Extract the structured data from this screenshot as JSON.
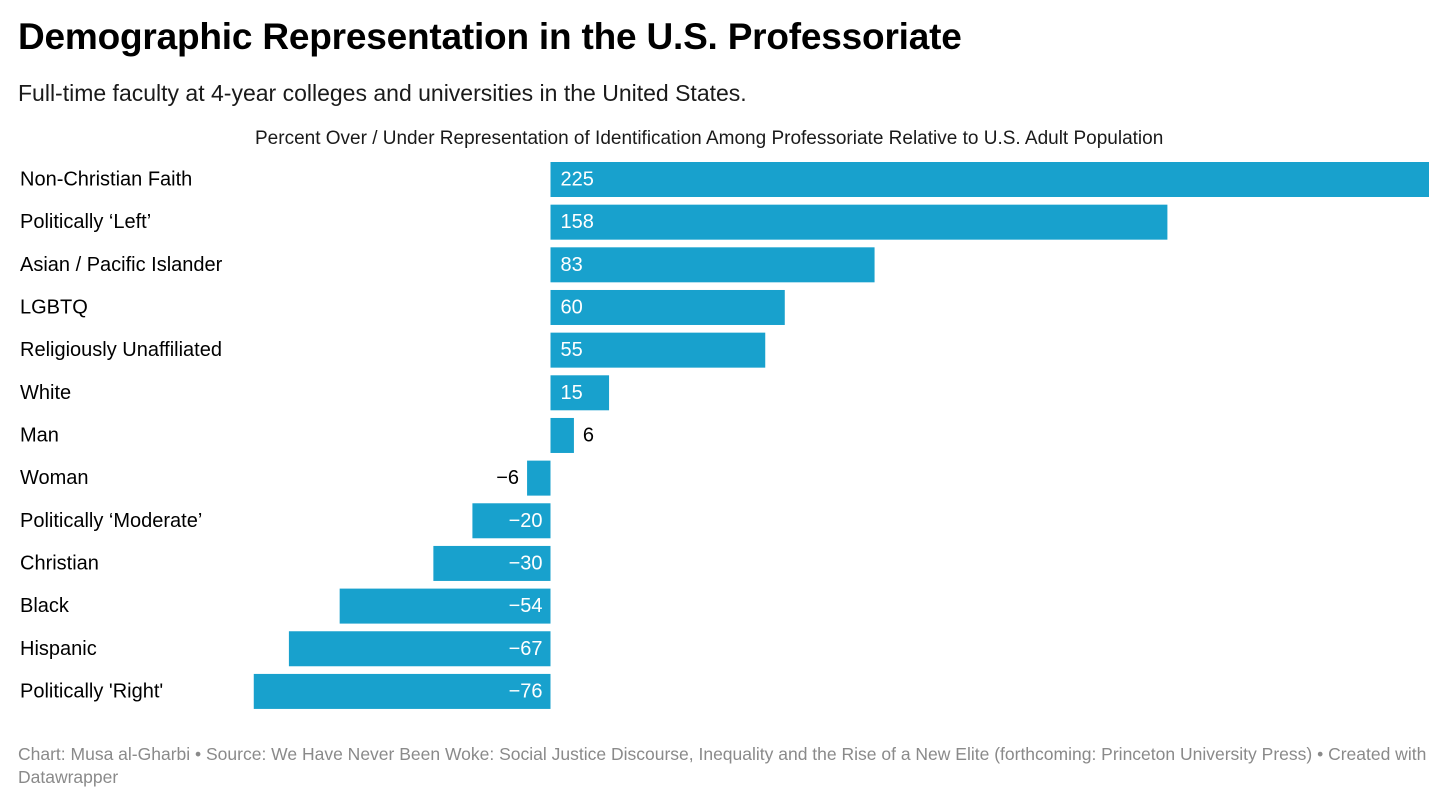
{
  "header": {
    "title": "Demographic Representation in the U.S. Professoriate",
    "subtitle": "Full-time faculty at 4-year colleges and universities in the United States."
  },
  "footer": {
    "text": "Chart: Musa al-Gharbi • Source: We Have Never Been Woke: Social Justice Discourse, Inequality and the Rise of a New Elite (forthcoming: Princeton University Press) • Created with Datawrapper"
  },
  "chart_data": {
    "type": "bar",
    "orientation": "horizontal",
    "title": "",
    "xlabel": "Percent Over / Under Representation of Identification Among Professoriate Relative to U.S. Adult Population",
    "ylabel": "",
    "xlim": [
      -76,
      225
    ],
    "categories": [
      "Non-Christian Faith",
      "Politically ‘Left’",
      "Asian / Pacific Islander",
      "LGBTQ",
      "Religiously Unaffiliated",
      "White",
      "Man",
      "Woman",
      "Politically ‘Moderate’",
      "Christian",
      "Black",
      "Hispanic",
      "Politically 'Right'"
    ],
    "values": [
      225,
      158,
      83,
      60,
      55,
      15,
      6,
      -6,
      -20,
      -30,
      -54,
      -67,
      -76
    ],
    "value_labels": [
      "225",
      "158",
      "83",
      "60",
      "55",
      "15",
      "6",
      "−6",
      "−20",
      "−30",
      "−54",
      "−67",
      "−76"
    ],
    "bar_color": "#18a1cd",
    "grid": false,
    "legend": "none"
  }
}
